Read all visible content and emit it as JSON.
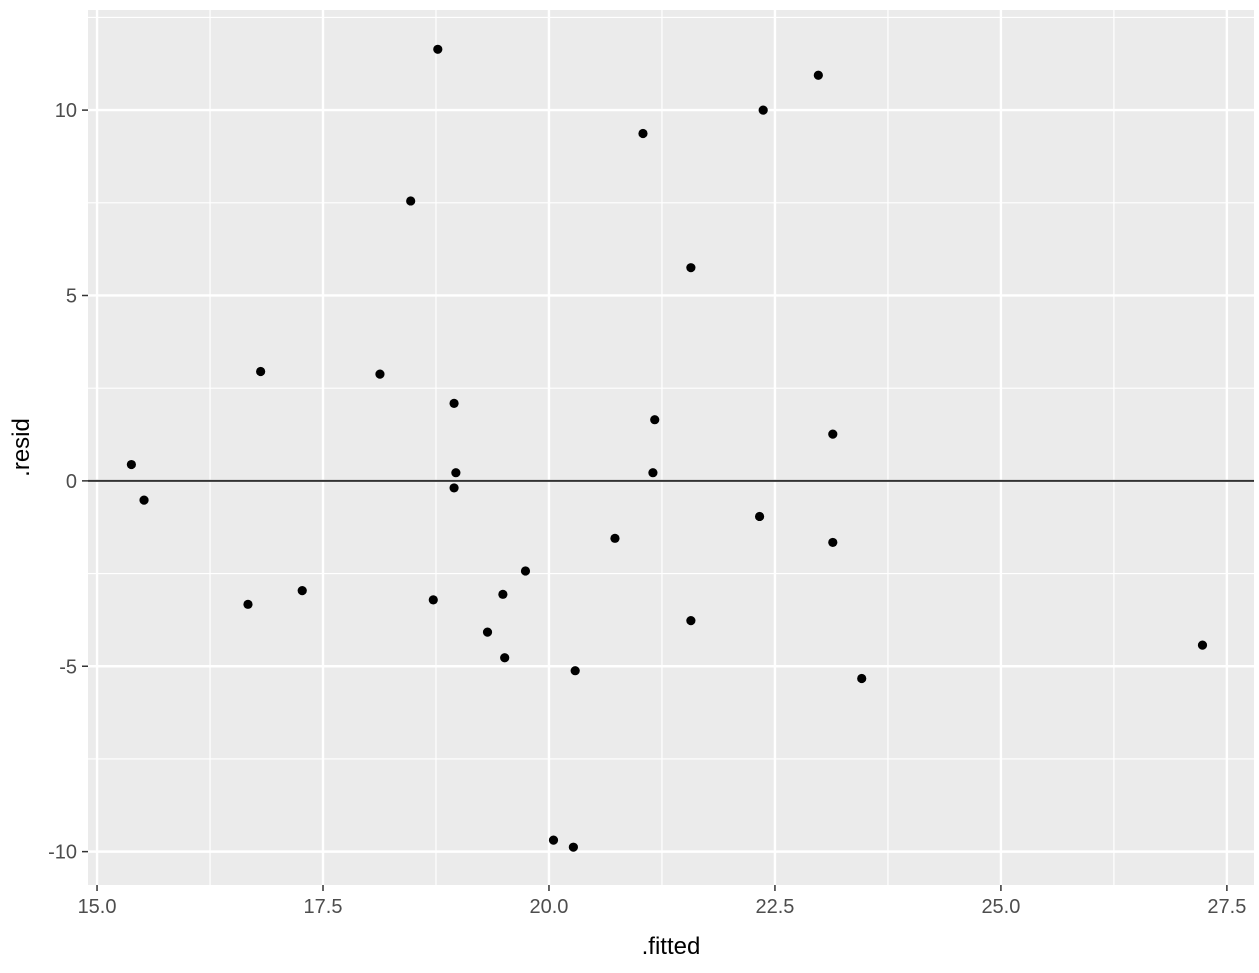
{
  "chart_data": {
    "type": "scatter",
    "title": "",
    "xlabel": ".fitted",
    "ylabel": ".resid",
    "xlim": [
      14.9,
      27.8
    ],
    "ylim": [
      -10.9,
      12.7
    ],
    "x_ticks": [
      15.0,
      17.5,
      20.0,
      22.5,
      25.0,
      27.5
    ],
    "x_tick_labels": [
      "15.0",
      "17.5",
      "20.0",
      "22.5",
      "25.0",
      "27.5"
    ],
    "y_ticks": [
      -10,
      -5,
      0,
      5,
      10
    ],
    "y_tick_labels": [
      "-10",
      "-5",
      "0",
      "5",
      "10"
    ],
    "x_minor": [
      16.25,
      18.75,
      21.25,
      23.75,
      26.25
    ],
    "y_minor": [
      -7.5,
      -2.5,
      2.5,
      7.5,
      12.5
    ],
    "reference_line_y": 0,
    "grid": true,
    "colors": {
      "panel": "#ebebeb",
      "grid": "#ffffff",
      "points": "#000000",
      "hline": "#333333",
      "ticks": "#333333"
    },
    "points": [
      {
        "x": 15.38,
        "y": 0.44
      },
      {
        "x": 15.52,
        "y": -0.52
      },
      {
        "x": 16.67,
        "y": -3.33
      },
      {
        "x": 16.81,
        "y": 2.95
      },
      {
        "x": 17.27,
        "y": -2.96
      },
      {
        "x": 18.13,
        "y": 2.88
      },
      {
        "x": 18.47,
        "y": 7.55
      },
      {
        "x": 18.72,
        "y": -3.21
      },
      {
        "x": 18.77,
        "y": 11.64
      },
      {
        "x": 18.95,
        "y": 2.09
      },
      {
        "x": 18.95,
        "y": -0.19
      },
      {
        "x": 18.97,
        "y": 0.22
      },
      {
        "x": 19.32,
        "y": -4.08
      },
      {
        "x": 19.49,
        "y": -3.06
      },
      {
        "x": 19.51,
        "y": -4.77
      },
      {
        "x": 19.74,
        "y": -2.43
      },
      {
        "x": 20.05,
        "y": -9.69
      },
      {
        "x": 20.27,
        "y": -9.88
      },
      {
        "x": 20.29,
        "y": -5.12
      },
      {
        "x": 20.73,
        "y": -1.55
      },
      {
        "x": 21.04,
        "y": 9.37
      },
      {
        "x": 21.15,
        "y": 0.22
      },
      {
        "x": 21.17,
        "y": 1.65
      },
      {
        "x": 21.57,
        "y": 5.75
      },
      {
        "x": 21.57,
        "y": -3.77
      },
      {
        "x": 22.33,
        "y": -0.96
      },
      {
        "x": 22.37,
        "y": 10.0
      },
      {
        "x": 22.98,
        "y": 10.94
      },
      {
        "x": 23.14,
        "y": 1.26
      },
      {
        "x": 23.14,
        "y": -1.66
      },
      {
        "x": 23.46,
        "y": -5.33
      },
      {
        "x": 27.23,
        "y": -4.43
      }
    ]
  }
}
